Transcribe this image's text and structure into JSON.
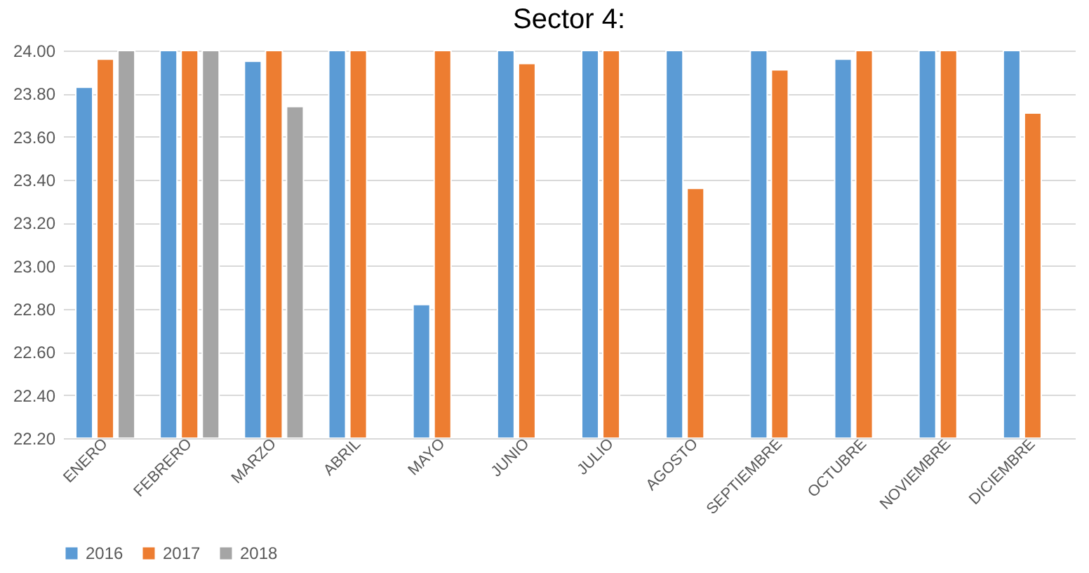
{
  "chart_data": {
    "type": "bar",
    "title": "Sector 4:",
    "categories": [
      "ENERO",
      "FEBRERO",
      "MARZO",
      "ABRIL",
      "MAYO",
      "JUNIO",
      "JULIO",
      "AGOSTO",
      "SEPTIEMBRE",
      "OCTUBRE",
      "NOVIEMBRE",
      "DICIEMBRE"
    ],
    "series": [
      {
        "name": "2016",
        "color": "#5b9bd5",
        "values": [
          23.83,
          24,
          23.95,
          24,
          22.82,
          24,
          24,
          24,
          24,
          23.96,
          24,
          24
        ]
      },
      {
        "name": "2017",
        "color": "#ed7d31",
        "values": [
          23.96,
          24,
          24,
          24,
          24,
          23.94,
          24,
          23.36,
          23.91,
          24,
          24,
          23.71
        ]
      },
      {
        "name": "2018",
        "color": "#a5a5a5",
        "values": [
          24,
          24,
          23.74,
          null,
          null,
          null,
          null,
          null,
          null,
          null,
          null,
          null
        ]
      }
    ],
    "ylim": [
      22.2,
      24
    ],
    "yticks": [
      {
        "value": 22.2,
        "label": "22.20"
      },
      {
        "value": 22.4,
        "label": "22.40"
      },
      {
        "value": 22.6,
        "label": "22.60"
      },
      {
        "value": 22.8,
        "label": "22.80"
      },
      {
        "value": 23,
        "label": "23.00"
      },
      {
        "value": 23.2,
        "label": "23.20"
      },
      {
        "value": 23.4,
        "label": "23.40"
      },
      {
        "value": 23.6,
        "label": "23.60"
      },
      {
        "value": 23.8,
        "label": "23.80"
      },
      {
        "value": 24,
        "label": "24.00"
      }
    ],
    "grid": "y",
    "legend": "bottom"
  }
}
